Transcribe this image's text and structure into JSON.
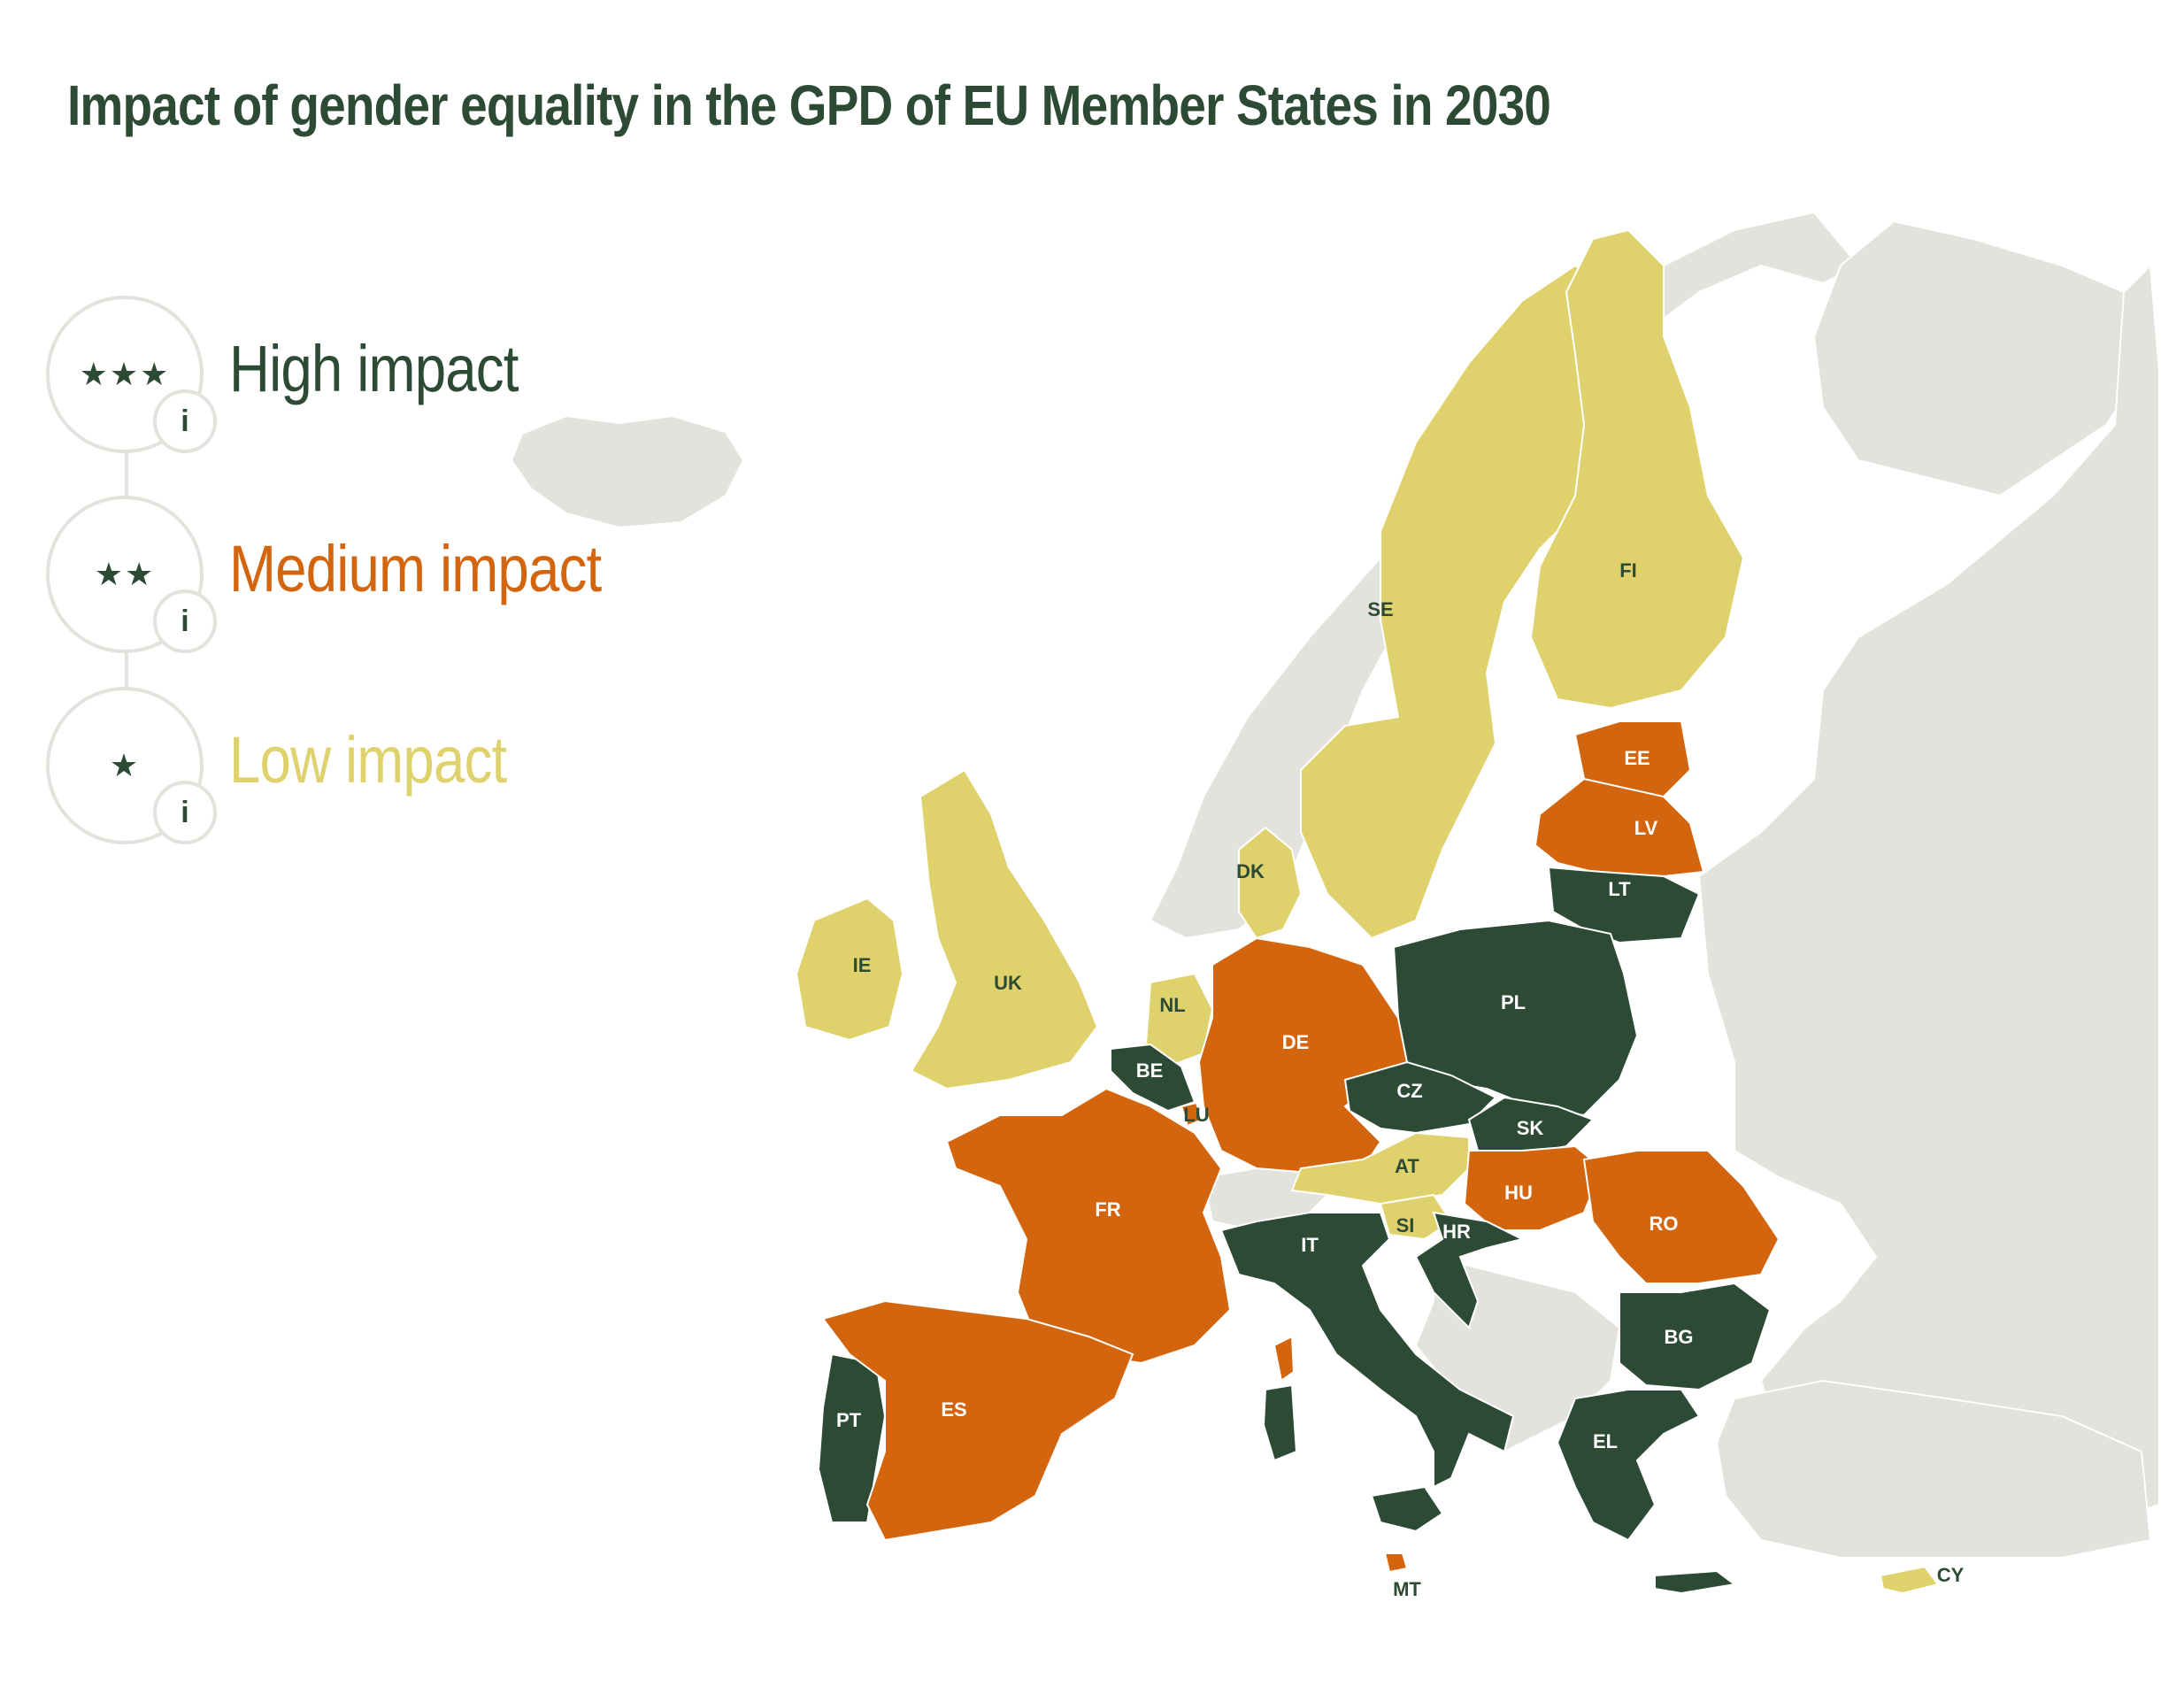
{
  "title": "Impact of gender equality in the GPD of EU Member States in 2030",
  "colors": {
    "high": "#2d4b34",
    "medium": "#d4650f",
    "low": "#dfd26c",
    "non_eu": "#e3e2dd",
    "sea": "#ffffff"
  },
  "legend": [
    {
      "key": "high",
      "stars": "★★★",
      "label": "High impact",
      "info": "i"
    },
    {
      "key": "medium",
      "stars": "★★",
      "label": "Medium impact",
      "info": "i"
    },
    {
      "key": "low",
      "stars": "★",
      "label": "Low impact",
      "info": "i"
    }
  ],
  "countries": [
    {
      "code": "SE",
      "impact": "low"
    },
    {
      "code": "FI",
      "impact": "low"
    },
    {
      "code": "EE",
      "impact": "medium"
    },
    {
      "code": "LV",
      "impact": "medium"
    },
    {
      "code": "LT",
      "impact": "high"
    },
    {
      "code": "DK",
      "impact": "low"
    },
    {
      "code": "IE",
      "impact": "low"
    },
    {
      "code": "UK",
      "impact": "low"
    },
    {
      "code": "NL",
      "impact": "low"
    },
    {
      "code": "BE",
      "impact": "high"
    },
    {
      "code": "LU",
      "impact": "medium"
    },
    {
      "code": "DE",
      "impact": "medium"
    },
    {
      "code": "PL",
      "impact": "high"
    },
    {
      "code": "CZ",
      "impact": "high"
    },
    {
      "code": "SK",
      "impact": "high"
    },
    {
      "code": "AT",
      "impact": "low"
    },
    {
      "code": "HU",
      "impact": "medium"
    },
    {
      "code": "RO",
      "impact": "medium"
    },
    {
      "code": "SI",
      "impact": "low"
    },
    {
      "code": "HR",
      "impact": "high"
    },
    {
      "code": "FR",
      "impact": "medium"
    },
    {
      "code": "IT",
      "impact": "high"
    },
    {
      "code": "BG",
      "impact": "high"
    },
    {
      "code": "EL",
      "impact": "high"
    },
    {
      "code": "PT",
      "impact": "high"
    },
    {
      "code": "ES",
      "impact": "medium"
    },
    {
      "code": "MT",
      "impact": "medium"
    },
    {
      "code": "CY",
      "impact": "low"
    }
  ]
}
